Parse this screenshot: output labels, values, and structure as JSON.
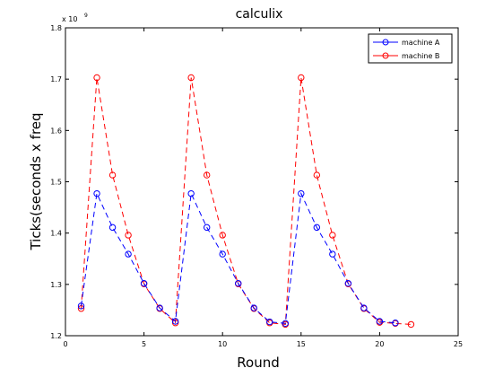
{
  "chart_data": {
    "type": "line",
    "title": "calculix",
    "xlabel": "Round",
    "ylabel": "Ticks(seconds x freq",
    "y_exponent": "x 10",
    "y_exponent_power": "9",
    "xlim": [
      0,
      25
    ],
    "ylim": [
      1.2,
      1.8
    ],
    "xticks": [
      0,
      5,
      10,
      15,
      20,
      25
    ],
    "xtick_labels": [
      "0",
      "5",
      "10",
      "15",
      "20",
      "25"
    ],
    "yticks": [
      1.2,
      1.3,
      1.4,
      1.5,
      1.6,
      1.7,
      1.8
    ],
    "ytick_labels": [
      "1.2",
      "1.3",
      "1.4",
      "1.5",
      "1.6",
      "1.7",
      "1.8"
    ],
    "grid": false,
    "legend_position": "top-right",
    "series": [
      {
        "name": "machine A",
        "color": "#0000ff",
        "marker": "circle",
        "line_style": "dashed",
        "x": [
          1,
          2,
          3,
          4,
          5,
          6,
          7,
          8,
          9,
          10,
          11,
          12,
          13,
          14,
          15,
          16,
          17,
          18,
          19,
          20,
          21
        ],
        "y": [
          1.258,
          1.477,
          1.411,
          1.359,
          1.302,
          1.254,
          1.228,
          1.477,
          1.411,
          1.359,
          1.302,
          1.254,
          1.227,
          1.224,
          1.477,
          1.411,
          1.359,
          1.302,
          1.254,
          1.228,
          1.225
        ]
      },
      {
        "name": "machine B",
        "color": "#ff0000",
        "marker": "circle",
        "line_style": "dashed",
        "x": [
          1,
          2,
          3,
          4,
          5,
          6,
          7,
          8,
          9,
          10,
          11,
          12,
          13,
          14,
          15,
          16,
          17,
          18,
          19,
          20,
          21,
          22
        ],
        "y": [
          1.253,
          1.703,
          1.513,
          1.396,
          1.301,
          1.253,
          1.225,
          1.703,
          1.513,
          1.396,
          1.301,
          1.253,
          1.225,
          1.222,
          1.703,
          1.513,
          1.396,
          1.301,
          1.253,
          1.226,
          1.224,
          1.222
        ]
      }
    ]
  }
}
